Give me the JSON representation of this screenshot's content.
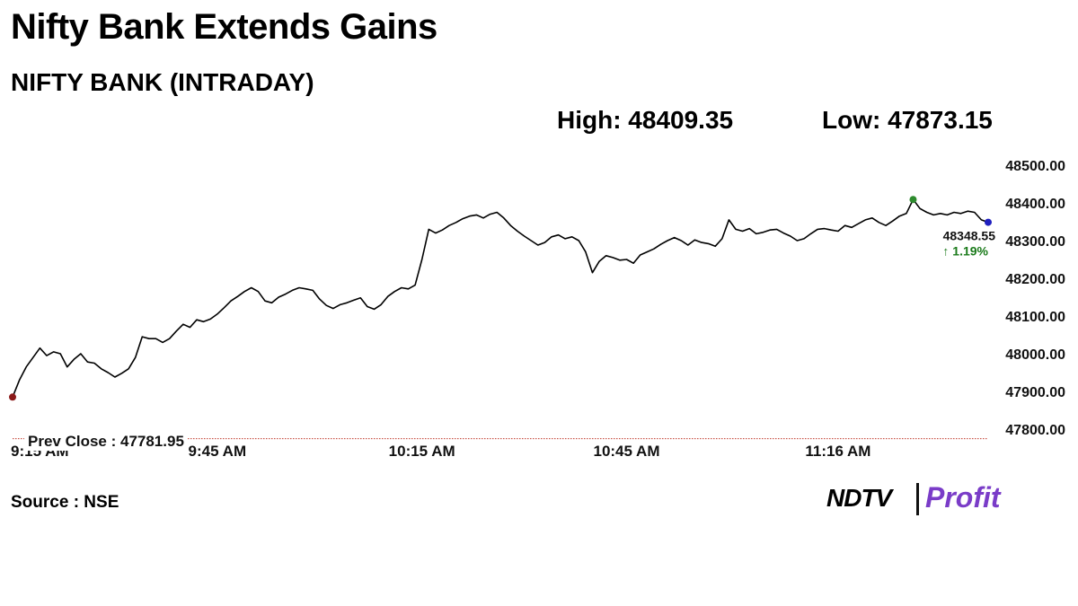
{
  "headline": "Nifty Bank Extends Gains",
  "chart_title": "NIFTY BANK (INTRADAY)",
  "high_text": "High: 48409.35",
  "low_text": "Low: 47873.15",
  "source": "Source : NSE",
  "logo": {
    "brand": "NDTV",
    "product": "Profit"
  },
  "colors": {
    "line": "#000000",
    "prev_close": "#c0392b",
    "up": "#1a7a1a",
    "start_dot": "#8b1a1a",
    "high_dot": "#2e8b2e",
    "last_dot": "#1f1fbf"
  },
  "chart_data": {
    "type": "line",
    "title": "NIFTY BANK (INTRADAY)",
    "high": 48409.35,
    "low": 47873.15,
    "prev_close": 47781.95,
    "prev_close_label": "Prev Close : 47781.95",
    "last_value": 48348.55,
    "last_value_label": "48348.55",
    "change_label": "↑ 1.19%",
    "ylim": [
      47800,
      48500
    ],
    "y_ticks": [
      48500,
      48400,
      48300,
      48200,
      48100,
      48000,
      47900,
      47800
    ],
    "y_tick_labels": [
      "48500.00",
      "48400.00",
      "48300.00",
      "48200.00",
      "48100.00",
      "48000.00",
      "47900.00",
      "47800.00"
    ],
    "x_range": [
      "09:15",
      "11:38"
    ],
    "x_ticks": [
      {
        "time": "09:15",
        "label": "9:15 AM"
      },
      {
        "time": "09:45",
        "label": "9:45 AM"
      },
      {
        "time": "10:15",
        "label": "10:15 AM"
      },
      {
        "time": "10:45",
        "label": "10:45 AM"
      },
      {
        "time": "11:16",
        "label": "11:16 AM"
      }
    ],
    "series": [
      {
        "points": [
          [
            "09:15",
            47885
          ],
          [
            "09:16",
            47930
          ],
          [
            "09:17",
            47965
          ],
          [
            "09:18",
            47990
          ],
          [
            "09:19",
            48015
          ],
          [
            "09:20",
            47995
          ],
          [
            "09:21",
            48005
          ],
          [
            "09:22",
            48000
          ],
          [
            "09:23",
            47965
          ],
          [
            "09:24",
            47985
          ],
          [
            "09:25",
            48000
          ],
          [
            "09:26",
            47978
          ],
          [
            "09:27",
            47975
          ],
          [
            "09:28",
            47960
          ],
          [
            "09:29",
            47950
          ],
          [
            "09:30",
            47938
          ],
          [
            "09:31",
            47948
          ],
          [
            "09:32",
            47960
          ],
          [
            "09:33",
            47990
          ],
          [
            "09:34",
            48045
          ],
          [
            "09:35",
            48040
          ],
          [
            "09:36",
            48040
          ],
          [
            "09:37",
            48030
          ],
          [
            "09:38",
            48040
          ],
          [
            "09:39",
            48060
          ],
          [
            "09:40",
            48078
          ],
          [
            "09:41",
            48070
          ],
          [
            "09:42",
            48090
          ],
          [
            "09:43",
            48085
          ],
          [
            "09:44",
            48092
          ],
          [
            "09:45",
            48105
          ],
          [
            "09:46",
            48122
          ],
          [
            "09:47",
            48140
          ],
          [
            "09:48",
            48152
          ],
          [
            "09:49",
            48165
          ],
          [
            "09:50",
            48175
          ],
          [
            "09:51",
            48165
          ],
          [
            "09:52",
            48140
          ],
          [
            "09:53",
            48135
          ],
          [
            "09:54",
            48150
          ],
          [
            "09:55",
            48158
          ],
          [
            "09:56",
            48168
          ],
          [
            "09:57",
            48175
          ],
          [
            "09:58",
            48172
          ],
          [
            "09:59",
            48168
          ],
          [
            "10:00",
            48145
          ],
          [
            "10:01",
            48128
          ],
          [
            "10:02",
            48120
          ],
          [
            "10:03",
            48130
          ],
          [
            "10:04",
            48135
          ],
          [
            "10:05",
            48142
          ],
          [
            "10:06",
            48148
          ],
          [
            "10:07",
            48125
          ],
          [
            "10:08",
            48118
          ],
          [
            "10:09",
            48130
          ],
          [
            "10:10",
            48152
          ],
          [
            "10:11",
            48165
          ],
          [
            "10:12",
            48175
          ],
          [
            "10:13",
            48172
          ],
          [
            "10:14",
            48182
          ],
          [
            "10:15",
            48250
          ],
          [
            "10:16",
            48330
          ],
          [
            "10:17",
            48320
          ],
          [
            "10:18",
            48328
          ],
          [
            "10:19",
            48340
          ],
          [
            "10:20",
            48348
          ],
          [
            "10:21",
            48358
          ],
          [
            "10:22",
            48365
          ],
          [
            "10:23",
            48368
          ],
          [
            "10:24",
            48360
          ],
          [
            "10:25",
            48370
          ],
          [
            "10:26",
            48375
          ],
          [
            "10:27",
            48360
          ],
          [
            "10:28",
            48340
          ],
          [
            "10:29",
            48325
          ],
          [
            "10:30",
            48312
          ],
          [
            "10:31",
            48300
          ],
          [
            "10:32",
            48288
          ],
          [
            "10:33",
            48295
          ],
          [
            "10:34",
            48310
          ],
          [
            "10:35",
            48315
          ],
          [
            "10:36",
            48305
          ],
          [
            "10:37",
            48310
          ],
          [
            "10:38",
            48300
          ],
          [
            "10:39",
            48270
          ],
          [
            "10:40",
            48215
          ],
          [
            "10:41",
            48245
          ],
          [
            "10:42",
            48260
          ],
          [
            "10:43",
            48255
          ],
          [
            "10:44",
            48248
          ],
          [
            "10:45",
            48250
          ],
          [
            "10:46",
            48240
          ],
          [
            "10:47",
            48262
          ],
          [
            "10:48",
            48270
          ],
          [
            "10:49",
            48278
          ],
          [
            "10:50",
            48290
          ],
          [
            "10:51",
            48300
          ],
          [
            "10:52",
            48308
          ],
          [
            "10:53",
            48300
          ],
          [
            "10:54",
            48288
          ],
          [
            "10:55",
            48302
          ],
          [
            "10:56",
            48295
          ],
          [
            "10:57",
            48292
          ],
          [
            "10:58",
            48285
          ],
          [
            "10:59",
            48305
          ],
          [
            "11:00",
            48355
          ],
          [
            "11:01",
            48330
          ],
          [
            "11:02",
            48325
          ],
          [
            "11:03",
            48332
          ],
          [
            "11:04",
            48318
          ],
          [
            "11:05",
            48322
          ],
          [
            "11:06",
            48328
          ],
          [
            "11:07",
            48330
          ],
          [
            "11:08",
            48320
          ],
          [
            "11:09",
            48312
          ],
          [
            "11:10",
            48300
          ],
          [
            "11:11",
            48305
          ],
          [
            "11:12",
            48318
          ],
          [
            "11:13",
            48330
          ],
          [
            "11:14",
            48332
          ],
          [
            "11:15",
            48328
          ],
          [
            "11:16",
            48325
          ],
          [
            "11:17",
            48340
          ],
          [
            "11:18",
            48335
          ],
          [
            "11:19",
            48345
          ],
          [
            "11:20",
            48355
          ],
          [
            "11:21",
            48360
          ],
          [
            "11:22",
            48348
          ],
          [
            "11:23",
            48340
          ],
          [
            "11:24",
            48352
          ],
          [
            "11:25",
            48365
          ],
          [
            "11:26",
            48372
          ],
          [
            "11:27",
            48409
          ],
          [
            "11:28",
            48385
          ],
          [
            "11:29",
            48375
          ],
          [
            "11:30",
            48368
          ],
          [
            "11:31",
            48372
          ],
          [
            "11:32",
            48368
          ],
          [
            "11:33",
            48375
          ],
          [
            "11:34",
            48372
          ],
          [
            "11:35",
            48378
          ],
          [
            "11:36",
            48375
          ],
          [
            "11:37",
            48355
          ],
          [
            "11:38",
            48348.55
          ]
        ]
      }
    ],
    "grid": false
  }
}
